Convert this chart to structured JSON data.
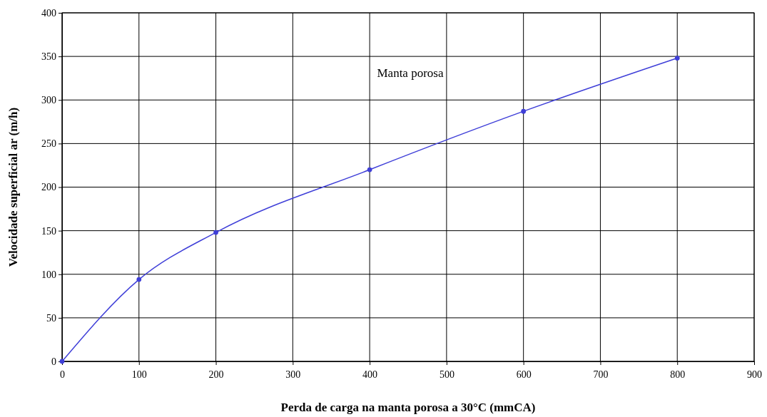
{
  "chart_data": {
    "type": "line",
    "xlabel": "Perda de carga na manta porosa a 30°C (mmCA)",
    "ylabel": "Velocidade superficial ar (m/h)",
    "x": [
      0,
      100,
      200,
      400,
      600,
      800
    ],
    "series": [
      {
        "color": "#3f3fd8",
        "values": [
          0,
          94,
          148,
          220,
          287,
          348
        ]
      }
    ],
    "xlim": [
      0,
      900
    ],
    "xticks": [
      0,
      100,
      200,
      300,
      400,
      500,
      600,
      700,
      800,
      900
    ],
    "ylim": [
      0,
      400
    ],
    "yticks": [
      0,
      50,
      100,
      150,
      200,
      250,
      300,
      350,
      400
    ],
    "grid": true,
    "marker": "circle",
    "line_style": "solid",
    "annotations": [
      "Manta porosa"
    ]
  }
}
